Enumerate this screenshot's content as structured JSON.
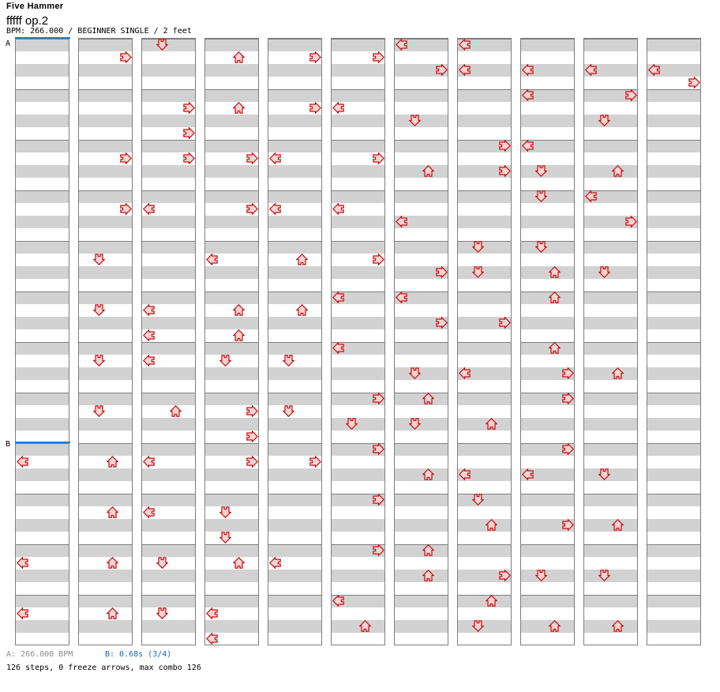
{
  "header": {
    "title": "Five Hammer",
    "subtitle": "fffff op.2",
    "meta": "BPM: 266.000 / BEGINNER SINGLE / 2 feet"
  },
  "footer": {
    "section_a": "A: 266.000 BPM",
    "section_b": "B: 0.68s (3/4)",
    "summary": "126 steps, 0 freeze arrows, max combo 126"
  },
  "markers": [
    {
      "label": "A",
      "row": 0
    },
    {
      "label": "B",
      "row": 32
    }
  ],
  "colors": {
    "stripe": "#d2d2d2",
    "measure_line": "#7e7e7e",
    "column_border": "#7e7e7e",
    "arrow_fill": "#f8d3d3",
    "arrow_stroke": "#c40f0f",
    "marker_line": "#2277cc",
    "footer_a_text": "#8c8c8c",
    "footer_b_text": "#1565c0"
  },
  "chart": {
    "columns": 11,
    "rows_per_column": 48,
    "rows_per_measure": 4,
    "lanes": [
      "left",
      "down",
      "up",
      "right"
    ],
    "steps_total": 126,
    "freeze_arrows": 0,
    "max_combo": 126,
    "arrows": [
      [
        1,
        33,
        0
      ],
      [
        1,
        41,
        0
      ],
      [
        1,
        45,
        0
      ],
      [
        2,
        1,
        3
      ],
      [
        2,
        9,
        3
      ],
      [
        2,
        13,
        3
      ],
      [
        2,
        17,
        1
      ],
      [
        2,
        21,
        1
      ],
      [
        2,
        25,
        1
      ],
      [
        2,
        29,
        1
      ],
      [
        2,
        33,
        2
      ],
      [
        2,
        37,
        2
      ],
      [
        2,
        41,
        2
      ],
      [
        2,
        45,
        2
      ],
      [
        3,
        0,
        1
      ],
      [
        3,
        5,
        3
      ],
      [
        3,
        7,
        3
      ],
      [
        3,
        9,
        3
      ],
      [
        3,
        13,
        0
      ],
      [
        3,
        21,
        0
      ],
      [
        3,
        23,
        0
      ],
      [
        3,
        25,
        0
      ],
      [
        3,
        29,
        2
      ],
      [
        3,
        33,
        0
      ],
      [
        3,
        37,
        0
      ],
      [
        3,
        41,
        1
      ],
      [
        3,
        45,
        1
      ],
      [
        4,
        1,
        2
      ],
      [
        4,
        5,
        2
      ],
      [
        4,
        9,
        3
      ],
      [
        4,
        13,
        3
      ],
      [
        4,
        17,
        0
      ],
      [
        4,
        21,
        2
      ],
      [
        4,
        23,
        2
      ],
      [
        4,
        25,
        1
      ],
      [
        4,
        29,
        3
      ],
      [
        4,
        31,
        3
      ],
      [
        4,
        33,
        3
      ],
      [
        4,
        37,
        1
      ],
      [
        4,
        39,
        1
      ],
      [
        4,
        41,
        2
      ],
      [
        4,
        45,
        0
      ],
      [
        4,
        47,
        0
      ],
      [
        5,
        1,
        3
      ],
      [
        5,
        5,
        3
      ],
      [
        5,
        9,
        0
      ],
      [
        5,
        13,
        0
      ],
      [
        5,
        17,
        2
      ],
      [
        5,
        21,
        2
      ],
      [
        5,
        25,
        1
      ],
      [
        5,
        29,
        1
      ],
      [
        5,
        33,
        3
      ],
      [
        5,
        41,
        0
      ],
      [
        6,
        1,
        3
      ],
      [
        6,
        5,
        0
      ],
      [
        6,
        9,
        3
      ],
      [
        6,
        13,
        0
      ],
      [
        6,
        17,
        3
      ],
      [
        6,
        20,
        0
      ],
      [
        6,
        24,
        0
      ],
      [
        6,
        28,
        3
      ],
      [
        6,
        30,
        1
      ],
      [
        6,
        32,
        3
      ],
      [
        6,
        36,
        3
      ],
      [
        6,
        40,
        3
      ],
      [
        6,
        44,
        0
      ],
      [
        6,
        46,
        2
      ],
      [
        7,
        0,
        0
      ],
      [
        7,
        2,
        3
      ],
      [
        7,
        6,
        1
      ],
      [
        7,
        10,
        2
      ],
      [
        7,
        14,
        0
      ],
      [
        7,
        18,
        3
      ],
      [
        7,
        20,
        0
      ],
      [
        7,
        22,
        3
      ],
      [
        7,
        26,
        1
      ],
      [
        7,
        28,
        2
      ],
      [
        7,
        30,
        1
      ],
      [
        7,
        34,
        2
      ],
      [
        7,
        40,
        2
      ],
      [
        7,
        42,
        2
      ],
      [
        8,
        0,
        0
      ],
      [
        8,
        2,
        0
      ],
      [
        8,
        8,
        3
      ],
      [
        8,
        10,
        3
      ],
      [
        8,
        16,
        1
      ],
      [
        8,
        18,
        1
      ],
      [
        8,
        22,
        3
      ],
      [
        8,
        26,
        0
      ],
      [
        8,
        30,
        2
      ],
      [
        8,
        34,
        0
      ],
      [
        8,
        36,
        1
      ],
      [
        8,
        38,
        2
      ],
      [
        8,
        42,
        3
      ],
      [
        8,
        44,
        2
      ],
      [
        8,
        46,
        1
      ],
      [
        9,
        2,
        0
      ],
      [
        9,
        4,
        0
      ],
      [
        9,
        8,
        0
      ],
      [
        9,
        10,
        1
      ],
      [
        9,
        12,
        1
      ],
      [
        9,
        16,
        1
      ],
      [
        9,
        18,
        2
      ],
      [
        9,
        20,
        2
      ],
      [
        9,
        24,
        2
      ],
      [
        9,
        26,
        3
      ],
      [
        9,
        28,
        3
      ],
      [
        9,
        32,
        3
      ],
      [
        9,
        34,
        0
      ],
      [
        9,
        38,
        3
      ],
      [
        9,
        42,
        1
      ],
      [
        9,
        46,
        2
      ],
      [
        10,
        2,
        0
      ],
      [
        10,
        4,
        3
      ],
      [
        10,
        6,
        1
      ],
      [
        10,
        10,
        2
      ],
      [
        10,
        12,
        0
      ],
      [
        10,
        14,
        3
      ],
      [
        10,
        18,
        1
      ],
      [
        10,
        26,
        2
      ],
      [
        10,
        34,
        1
      ],
      [
        10,
        38,
        2
      ],
      [
        10,
        42,
        1
      ],
      [
        10,
        46,
        2
      ],
      [
        11,
        2,
        0
      ],
      [
        11,
        3,
        3
      ]
    ]
  }
}
